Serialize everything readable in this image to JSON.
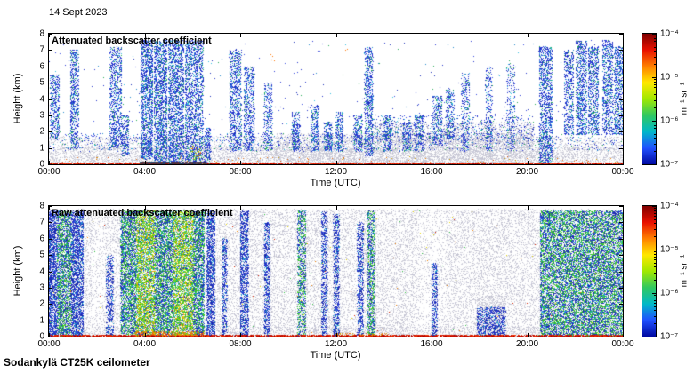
{
  "date_label": "14 Sept 2023",
  "footer": "Sodankylä CT25K ceilometer",
  "colorbar": {
    "labels": [
      "10⁻⁴",
      "10⁻⁵",
      "10⁻⁶",
      "10⁻⁷"
    ],
    "unit": "m⁻¹ sr⁻¹",
    "scale": "log",
    "range": [
      "1e-7",
      "1e-4"
    ],
    "gradient": [
      "#7f0000",
      "#e81000",
      "#ff8000",
      "#ffe800",
      "#a0e800",
      "#30c860",
      "#00b8c8",
      "#2050ff",
      "#0008a0"
    ]
  },
  "palettes": {
    "gray": [
      "#c7c7d4",
      "#d2d2dc",
      "#dcdce4",
      "#c0c0cf",
      "#cacada"
    ],
    "grayblue": [
      "#b4b4cc",
      "#a6a6c4",
      "#c0c0d4"
    ],
    "cloud": [
      "#1a2db8",
      "#2233cc",
      "#2939d4",
      "#3344dd",
      "#3a4fe0",
      "#2288cc",
      "#33bbdd",
      "#1a2db8",
      "#2233cc",
      "#22aa55"
    ],
    "blueband": [
      "#1828a8",
      "#2030c0",
      "#2838d0",
      "#3048e0",
      "#20a0d0",
      "#1828a8",
      "#2030c0"
    ],
    "bandstrong": [
      "#2030c0",
      "#2838d0",
      "#28b828",
      "#30c040",
      "#20a8d8",
      "#1828a8",
      "#50d030"
    ],
    "bandyellow": [
      "#28b828",
      "#50d030",
      "#a8d818",
      "#d8d800",
      "#30c040",
      "#2030c0",
      "#20a8d8",
      "#f0a000",
      "#80d820"
    ],
    "red": [
      "#cc1100",
      "#e02000",
      "#a80000",
      "#f03000"
    ],
    "darkmix": [
      "#553333",
      "#333366",
      "#662222",
      "#224466"
    ],
    "warm": [
      "#f08000",
      "#e05010",
      "#d0a000",
      "#e87820"
    ],
    "warmgreen": [
      "#30c040",
      "#f08000",
      "#a8d818"
    ],
    "orange": [
      "#ff7700"
    ],
    "speck": [
      "#f08000",
      "#d02000",
      "#30c040",
      "#e8d800"
    ]
  },
  "chart_data": [
    {
      "type": "heatmap",
      "title": "Attenuated backscatter coefficient",
      "xlabel": "Time (UTC)",
      "ylabel": "Height (km)",
      "xticks": [
        "00:00",
        "04:00",
        "08:00",
        "12:00",
        "16:00",
        "20:00",
        "00:00"
      ],
      "yticks": [
        0,
        1,
        2,
        3,
        4,
        5,
        6,
        7,
        8
      ],
      "x_range_hours": [
        0,
        24
      ],
      "y_range_km": [
        0,
        8
      ],
      "value_unit": "m⁻¹ sr⁻¹",
      "value_range": [
        "1e-7",
        "1e-4"
      ],
      "features": [
        {
          "t": [
            0,
            24
          ],
          "h": [
            0,
            1.05
          ],
          "n": 6500,
          "p": "gray"
        },
        {
          "t": [
            0,
            24
          ],
          "h": [
            0.9,
            1.7
          ],
          "n": 2600,
          "p": "gray"
        },
        {
          "t": [
            9.5,
            20.3
          ],
          "h": [
            0,
            1.9
          ],
          "n": 3500,
          "p": "gray"
        },
        {
          "t": [
            13.5,
            20.3
          ],
          "h": [
            1.2,
            2.6
          ],
          "n": 1200,
          "p": "grayblue"
        },
        {
          "t": [
            0,
            24
          ],
          "h": [
            0.8,
            1.9
          ],
          "n": 900,
          "p": "cloud"
        },
        {
          "t": [
            13.5,
            20.3
          ],
          "h": [
            1.5,
            3.0
          ],
          "n": 500,
          "p": "cloud"
        },
        {
          "t": [
            0,
            24
          ],
          "h": [
            2,
            7.6
          ],
          "n": 300,
          "p": "cloud"
        },
        {
          "t": [
            0.05,
            0.45
          ],
          "h": [
            1.5,
            5.5
          ],
          "n": 450,
          "p": "cloud"
        },
        {
          "t": [
            0.9,
            1.25
          ],
          "h": [
            1.0,
            7.0
          ],
          "n": 650,
          "p": "cloud"
        },
        {
          "t": [
            2.55,
            3.05
          ],
          "h": [
            1.0,
            7.2
          ],
          "n": 850,
          "p": "cloud"
        },
        {
          "t": [
            3.05,
            3.35
          ],
          "h": [
            0.5,
            3.0
          ],
          "n": 220,
          "p": "cloud"
        },
        {
          "t": [
            3.85,
            4.35
          ],
          "h": [
            0.3,
            7.6
          ],
          "n": 1500,
          "p": "cloud"
        },
        {
          "t": [
            4.4,
            4.95
          ],
          "h": [
            0,
            7.6
          ],
          "n": 1700,
          "p": "cloud"
        },
        {
          "t": [
            5.0,
            5.65
          ],
          "h": [
            0,
            7.6
          ],
          "n": 1800,
          "p": "cloud"
        },
        {
          "t": [
            5.7,
            6.45
          ],
          "h": [
            0,
            7.6
          ],
          "n": 1800,
          "p": "cloud"
        },
        {
          "t": [
            6.5,
            6.75
          ],
          "h": [
            0,
            2.2
          ],
          "n": 220,
          "p": "cloud"
        },
        {
          "t": [
            7.55,
            8.05
          ],
          "h": [
            0.8,
            7.0
          ],
          "n": 900,
          "p": "cloud"
        },
        {
          "t": [
            8.15,
            8.6
          ],
          "h": [
            0.8,
            6.0
          ],
          "n": 650,
          "p": "cloud"
        },
        {
          "t": [
            9.0,
            9.35
          ],
          "h": [
            0.8,
            5.0
          ],
          "n": 320,
          "p": "cloud"
        },
        {
          "t": [
            10.15,
            10.5
          ],
          "h": [
            0.8,
            3.2
          ],
          "n": 280,
          "p": "cloud"
        },
        {
          "t": [
            10.95,
            11.3
          ],
          "h": [
            0.8,
            3.6
          ],
          "n": 320,
          "p": "cloud"
        },
        {
          "t": [
            11.5,
            11.85
          ],
          "h": [
            0.8,
            2.6
          ],
          "n": 230,
          "p": "cloud"
        },
        {
          "t": [
            12.0,
            12.3
          ],
          "h": [
            0.8,
            3.2
          ],
          "n": 260,
          "p": "cloud"
        },
        {
          "t": [
            12.75,
            13.1
          ],
          "h": [
            0.8,
            3.0
          ],
          "n": 260,
          "p": "cloud"
        },
        {
          "t": [
            13.2,
            13.55
          ],
          "h": [
            0.5,
            7.2
          ],
          "n": 750,
          "p": "cloud"
        },
        {
          "t": [
            14.0,
            14.35
          ],
          "h": [
            0.8,
            3.0
          ],
          "n": 260,
          "p": "cloud"
        },
        {
          "t": [
            14.8,
            15.15
          ],
          "h": [
            0.8,
            2.6
          ],
          "n": 200,
          "p": "cloud"
        },
        {
          "t": [
            15.3,
            15.65
          ],
          "h": [
            0.8,
            3.0
          ],
          "n": 220,
          "p": "cloud"
        },
        {
          "t": [
            16.05,
            16.45
          ],
          "h": [
            1.2,
            4.2
          ],
          "n": 320,
          "p": "cloud"
        },
        {
          "t": [
            16.6,
            16.95
          ],
          "h": [
            1.5,
            4.6
          ],
          "n": 280,
          "p": "cloud"
        },
        {
          "t": [
            17.25,
            17.6
          ],
          "h": [
            0.8,
            5.6
          ],
          "n": 300,
          "p": "cloud"
        },
        {
          "t": [
            18.25,
            18.55
          ],
          "h": [
            0.8,
            6.0
          ],
          "n": 240,
          "p": "cloud"
        },
        {
          "t": [
            19.15,
            19.5
          ],
          "h": [
            0.8,
            6.2
          ],
          "n": 240,
          "p": "cloud"
        },
        {
          "t": [
            20.5,
            21.05
          ],
          "h": [
            0,
            7.2
          ],
          "n": 1300,
          "p": "cloud"
        },
        {
          "t": [
            21.55,
            21.95
          ],
          "h": [
            1.8,
            7.0
          ],
          "n": 550,
          "p": "cloud"
        },
        {
          "t": [
            22.05,
            22.5
          ],
          "h": [
            1.8,
            7.6
          ],
          "n": 850,
          "p": "cloud"
        },
        {
          "t": [
            22.55,
            23.0
          ],
          "h": [
            1.8,
            7.2
          ],
          "n": 750,
          "p": "cloud"
        },
        {
          "t": [
            23.15,
            23.6
          ],
          "h": [
            1.8,
            7.6
          ],
          "n": 750,
          "p": "cloud"
        },
        {
          "t": [
            23.65,
            24.0
          ],
          "h": [
            1.8,
            7.2
          ],
          "n": 650,
          "p": "cloud"
        },
        {
          "t": [
            0,
            24
          ],
          "h": [
            0,
            0.07
          ],
          "n": 2200,
          "p": "red"
        },
        {
          "t": [
            3.8,
            6.6
          ],
          "h": [
            0,
            0.15
          ],
          "n": 700,
          "p": "darkmix"
        },
        {
          "t": [
            0,
            24
          ],
          "h": [
            0.05,
            0.45
          ],
          "n": 90,
          "p": "warm"
        },
        {
          "t": [
            5.9,
            6.4
          ],
          "h": [
            0.2,
            1.1
          ],
          "n": 50,
          "p": "warmgreen"
        },
        {
          "t": [
            9.25,
            9.45
          ],
          "h": [
            6.3,
            6.7
          ],
          "n": 4,
          "p": "orange"
        },
        {
          "t": [
            12.4,
            12.5
          ],
          "h": [
            6.9,
            7.1
          ],
          "n": 2,
          "p": "orange"
        }
      ]
    },
    {
      "type": "heatmap",
      "title": "Raw attenuated backscatter coefficient",
      "xlabel": "Time (UTC)",
      "ylabel": "Height (km)",
      "xticks": [
        "00:00",
        "04:00",
        "08:00",
        "12:00",
        "16:00",
        "20:00",
        "00:00"
      ],
      "yticks": [
        0,
        1,
        2,
        3,
        4,
        5,
        6,
        7,
        8
      ],
      "x_range_hours": [
        0,
        24
      ],
      "y_range_km": [
        0,
        8
      ],
      "value_unit": "m⁻¹ sr⁻¹",
      "value_range": [
        "1e-7",
        "1e-4"
      ],
      "features": [
        {
          "t": [
            0,
            1.8
          ],
          "h": [
            0,
            7.8
          ],
          "n": 2600,
          "p": "gray"
        },
        {
          "t": [
            1.8,
            2.35
          ],
          "h": [
            0,
            7.8
          ],
          "n": 420,
          "p": "gray"
        },
        {
          "t": [
            2.35,
            15.4
          ],
          "h": [
            0,
            7.8
          ],
          "n": 17000,
          "p": "gray"
        },
        {
          "t": [
            15.4,
            16.6
          ],
          "h": [
            0,
            7.8
          ],
          "n": 950,
          "p": "gray"
        },
        {
          "t": [
            16.6,
            24
          ],
          "h": [
            0,
            7.8
          ],
          "n": 9500,
          "p": "gray"
        },
        {
          "t": [
            0,
            24
          ],
          "h": [
            0,
            0.6
          ],
          "n": 1500,
          "p": "gray"
        },
        {
          "t": [
            17.9,
            19.1
          ],
          "h": [
            0,
            2.5
          ],
          "n": 700,
          "p": "gray"
        },
        {
          "t": [
            0.0,
            0.35
          ],
          "h": [
            0,
            7.7
          ],
          "n": 1400,
          "p": "blueband"
        },
        {
          "t": [
            0.35,
            0.95
          ],
          "h": [
            0,
            7.7
          ],
          "n": 2400,
          "p": "bandstrong"
        },
        {
          "t": [
            0.95,
            1.45
          ],
          "h": [
            0,
            7.7
          ],
          "n": 2000,
          "p": "blueband"
        },
        {
          "t": [
            2.4,
            2.7
          ],
          "h": [
            0,
            5.0
          ],
          "n": 450,
          "p": "blueband"
        },
        {
          "t": [
            3.0,
            3.65
          ],
          "h": [
            0,
            7.7
          ],
          "n": 2600,
          "p": "bandstrong"
        },
        {
          "t": [
            3.65,
            4.45
          ],
          "h": [
            0,
            7.7
          ],
          "n": 3600,
          "p": "bandyellow"
        },
        {
          "t": [
            4.45,
            5.2
          ],
          "h": [
            0,
            7.7
          ],
          "n": 3000,
          "p": "bandstrong"
        },
        {
          "t": [
            5.2,
            6.05
          ],
          "h": [
            0,
            7.7
          ],
          "n": 3600,
          "p": "bandyellow"
        },
        {
          "t": [
            6.05,
            6.5
          ],
          "h": [
            0,
            7.7
          ],
          "n": 2000,
          "p": "bandstrong"
        },
        {
          "t": [
            6.6,
            6.95
          ],
          "h": [
            0,
            7.7
          ],
          "n": 1300,
          "p": "blueband"
        },
        {
          "t": [
            7.25,
            7.45
          ],
          "h": [
            0,
            6.0
          ],
          "n": 450,
          "p": "blueband"
        },
        {
          "t": [
            8.0,
            8.35
          ],
          "h": [
            0,
            7.7
          ],
          "n": 1200,
          "p": "blueband"
        },
        {
          "t": [
            9.0,
            9.25
          ],
          "h": [
            0,
            7.0
          ],
          "n": 700,
          "p": "blueband"
        },
        {
          "t": [
            10.4,
            10.75
          ],
          "h": [
            0,
            7.7
          ],
          "n": 1000,
          "p": "bandstrong"
        },
        {
          "t": [
            11.4,
            11.65
          ],
          "h": [
            0,
            7.7
          ],
          "n": 700,
          "p": "blueband"
        },
        {
          "t": [
            11.9,
            12.15
          ],
          "h": [
            0,
            7.5
          ],
          "n": 700,
          "p": "blueband"
        },
        {
          "t": [
            12.9,
            13.15
          ],
          "h": [
            0,
            7.0
          ],
          "n": 650,
          "p": "blueband"
        },
        {
          "t": [
            13.3,
            13.65
          ],
          "h": [
            0,
            7.7
          ],
          "n": 1100,
          "p": "bandstrong"
        },
        {
          "t": [
            16.0,
            16.25
          ],
          "h": [
            0,
            4.5
          ],
          "n": 400,
          "p": "blueband"
        },
        {
          "t": [
            17.9,
            19.1
          ],
          "h": [
            0,
            1.8
          ],
          "n": 800,
          "p": "blueband"
        },
        {
          "t": [
            20.55,
            21.2
          ],
          "h": [
            0,
            7.7
          ],
          "n": 2400,
          "p": "bandstrong"
        },
        {
          "t": [
            21.2,
            22.3
          ],
          "h": [
            0,
            7.7
          ],
          "n": 3800,
          "p": "bandstrong"
        },
        {
          "t": [
            22.3,
            23.1
          ],
          "h": [
            0,
            7.7
          ],
          "n": 3100,
          "p": "bandstrong"
        },
        {
          "t": [
            23.1,
            24.0
          ],
          "h": [
            0,
            7.7
          ],
          "n": 3100,
          "p": "bandstrong"
        },
        {
          "t": [
            0,
            24
          ],
          "h": [
            0,
            0.08
          ],
          "n": 2400,
          "p": "red"
        },
        {
          "t": [
            3.6,
            6.5
          ],
          "h": [
            0.05,
            0.3
          ],
          "n": 260,
          "p": "warm"
        },
        {
          "t": [
            12,
            14.2
          ],
          "h": [
            0.05,
            0.2
          ],
          "n": 60,
          "p": "warm"
        },
        {
          "t": [
            0,
            24
          ],
          "h": [
            0,
            7.7
          ],
          "n": 180,
          "p": "speck"
        }
      ]
    }
  ]
}
